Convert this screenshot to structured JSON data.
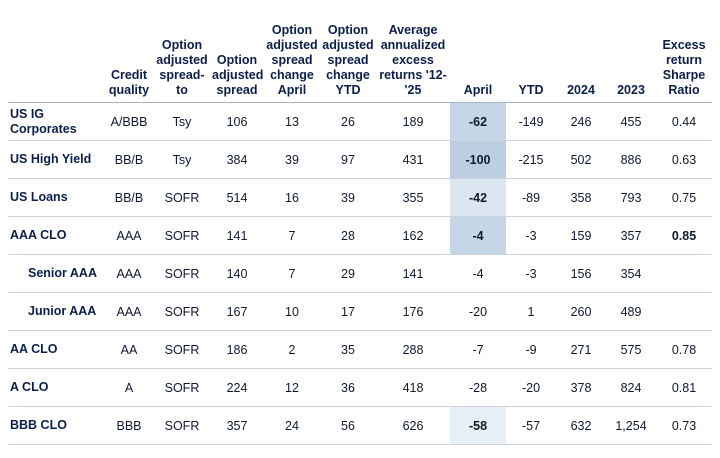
{
  "columns": [
    "",
    "Credit quality",
    "Option adjusted spread-to",
    "Option adjusted spread",
    "Option adjusted spread change April",
    "Option adjusted spread change YTD",
    "Average annualized excess returns '12-'25",
    "April",
    "YTD",
    "2024",
    "2023",
    "Excess return Sharpe Ratio"
  ],
  "rows": [
    {
      "name": "US IG Corporates",
      "sub": false,
      "cells": [
        "A/BBB",
        "Tsy",
        "106",
        "13",
        "26",
        "189",
        "-62",
        "-149",
        "246",
        "455",
        "0.44"
      ],
      "april_shade": "#c5d6e6",
      "sharpe_bold": false
    },
    {
      "name": "US High Yield",
      "sub": false,
      "cells": [
        "BB/B",
        "Tsy",
        "384",
        "39",
        "97",
        "431",
        "-100",
        "-215",
        "502",
        "886",
        "0.63"
      ],
      "april_shade": "#bccfe2",
      "sharpe_bold": false
    },
    {
      "name": "US Loans",
      "sub": false,
      "cells": [
        "BB/B",
        "SOFR",
        "514",
        "16",
        "39",
        "355",
        "-42",
        "-89",
        "358",
        "793",
        "0.75"
      ],
      "april_shade": "#dbe6f0",
      "sharpe_bold": false
    },
    {
      "name": "AAA CLO",
      "sub": false,
      "cells": [
        "AAA",
        "SOFR",
        "141",
        "7",
        "28",
        "162",
        "-4",
        "-3",
        "159",
        "357",
        "0.85"
      ],
      "april_shade": "#c5d6e6",
      "sharpe_bold": true
    },
    {
      "name": "Senior AAA",
      "sub": true,
      "cells": [
        "AAA",
        "SOFR",
        "140",
        "7",
        "29",
        "141",
        "-4",
        "-3",
        "156",
        "354",
        ""
      ],
      "april_shade": "",
      "sharpe_bold": false
    },
    {
      "name": "Junior AAA",
      "sub": true,
      "cells": [
        "AAA",
        "SOFR",
        "167",
        "10",
        "17",
        "176",
        "-20",
        "1",
        "260",
        "489",
        ""
      ],
      "april_shade": "",
      "sharpe_bold": false
    },
    {
      "name": "AA CLO",
      "sub": false,
      "cells": [
        "AA",
        "SOFR",
        "186",
        "2",
        "35",
        "288",
        "-7",
        "-9",
        "271",
        "575",
        "0.78"
      ],
      "april_shade": "",
      "sharpe_bold": false
    },
    {
      "name": "A CLO",
      "sub": false,
      "cells": [
        "A",
        "SOFR",
        "224",
        "12",
        "36",
        "418",
        "-28",
        "-20",
        "378",
        "824",
        "0.81"
      ],
      "april_shade": "",
      "sharpe_bold": false
    },
    {
      "name": "BBB CLO",
      "sub": false,
      "cells": [
        "BBB",
        "SOFR",
        "357",
        "24",
        "56",
        "626",
        "-58",
        "-57",
        "632",
        "1,254",
        "0.73"
      ],
      "april_shade": "#e6eef6",
      "sharpe_bold": false
    }
  ]
}
